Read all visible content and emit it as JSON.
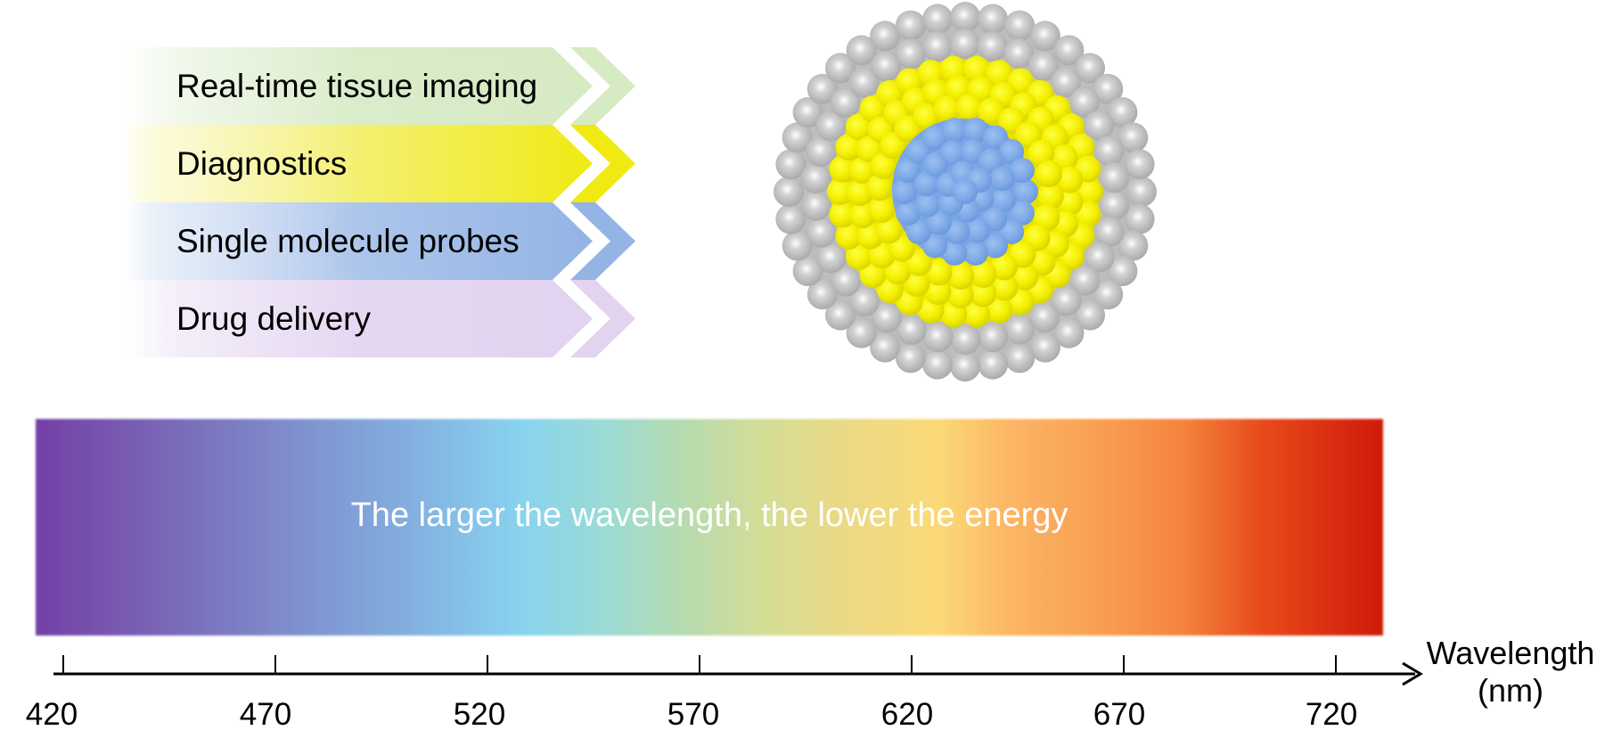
{
  "applications": [
    {
      "label": "Real-time tissue imaging",
      "color": "#d6eac4"
    },
    {
      "label": "Diagnostics",
      "color": "#f0ea12"
    },
    {
      "label": "Single molecule probes",
      "color": "#93b4e4"
    },
    {
      "label": "Drug delivery",
      "color": "#e2d3f0"
    }
  ],
  "nanoparticle": {
    "shell_color": "#bcbcbc",
    "middle_color": "#f2ee00",
    "core_color": "#7aa8e8"
  },
  "spectrum": {
    "caption": "The larger the wavelength, the lower the energy",
    "start_color": "#7440a6",
    "end_color": "#cf1a0a"
  },
  "axis": {
    "title_line1": "Wavelength",
    "title_line2": "(nm)",
    "ticks": [
      "420",
      "470",
      "520",
      "570",
      "620",
      "670",
      "720"
    ]
  },
  "chart_data": {
    "type": "diagram",
    "title": "",
    "xlabel": "Wavelength (nm)",
    "x_ticks": [
      420,
      470,
      520,
      570,
      620,
      670,
      720
    ],
    "annotation": "The larger the wavelength, the lower the energy",
    "categories": [
      "Real-time tissue imaging",
      "Diagnostics",
      "Single molecule probes",
      "Drug delivery"
    ]
  }
}
